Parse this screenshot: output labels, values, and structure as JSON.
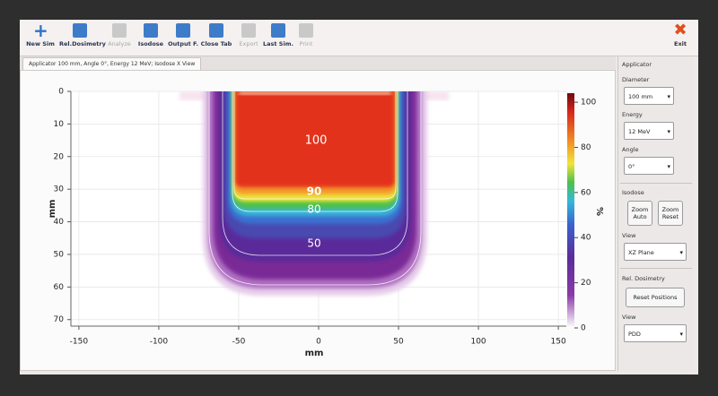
{
  "toolbar": {
    "buttons": [
      {
        "label": "New Sim",
        "enabled": true
      },
      {
        "label": "Rel.Dosimetry",
        "enabled": true
      },
      {
        "label": "Analyze",
        "enabled": false
      },
      {
        "label": "Isodose",
        "enabled": true
      },
      {
        "label": "Output F.",
        "enabled": true
      },
      {
        "label": "Close Tab",
        "enabled": true
      },
      {
        "label": "Export",
        "enabled": false
      },
      {
        "label": "Last Sim.",
        "enabled": true
      },
      {
        "label": "Print",
        "enabled": false
      }
    ],
    "exit": "Exit"
  },
  "tab": "Applicator 100 mm, Angle 0°, Energy 12 MeV; Isodose X View",
  "chart_data": {
    "type": "heatmap",
    "xlabel": "mm",
    "ylabel": "mm",
    "xlim": [
      -155,
      155
    ],
    "ylim": [
      0,
      72
    ],
    "y_inverted": true,
    "xticks": [
      -150,
      -100,
      -50,
      0,
      50,
      100,
      150
    ],
    "yticks": [
      0,
      10,
      20,
      30,
      40,
      50,
      60,
      70
    ],
    "grid": true,
    "colorbar": {
      "label": "%",
      "lim": [
        0,
        104
      ],
      "ticks": [
        0,
        20,
        40,
        60,
        80,
        100
      ]
    },
    "contour_labels": [
      100,
      90,
      80,
      50
    ]
  },
  "sidebar": {
    "applicator": {
      "title": "Applicator",
      "diameter": {
        "label": "Diameter",
        "value": "100 mm"
      },
      "energy": {
        "label": "Energy",
        "value": "12 MeV"
      },
      "angle": {
        "label": "Angle",
        "value": "0°"
      }
    },
    "isodose": {
      "title": "Isodose",
      "zoom_auto": "Zoom Auto",
      "zoom_reset": "Zoom Reset",
      "view": {
        "label": "View",
        "value": "XZ Plane"
      }
    },
    "rel_dosimetry": {
      "title": "Rel. Dosimetry",
      "reset": "Reset Positions",
      "view": {
        "label": "View",
        "value": "PDD"
      }
    }
  }
}
